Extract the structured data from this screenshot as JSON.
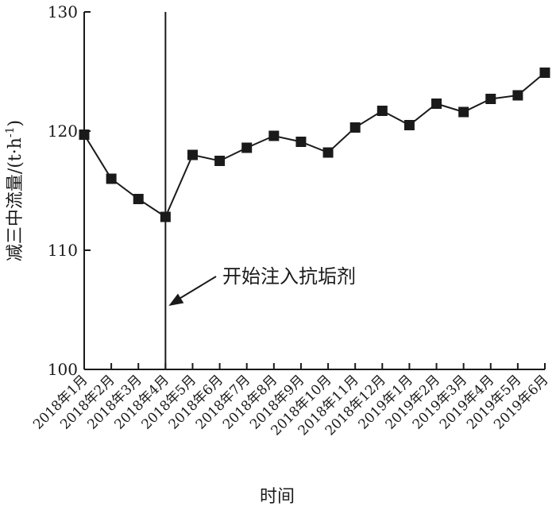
{
  "chart_data": {
    "type": "line",
    "xlabel": "时间",
    "ylabel": "减三中流量/(t·h",
    "ylabel_unit_exp": "-1",
    "ylabel_close": ")",
    "ylim": [
      100,
      130
    ],
    "yticks": [
      100,
      110,
      120,
      130
    ],
    "categories": [
      "2018年1月",
      "2018年2月",
      "2018年3月",
      "2018年4月",
      "2018年5月",
      "2018年6月",
      "2018年7月",
      "2018年8月",
      "2018年9月",
      "2018年10月",
      "2018年11月",
      "2018年12月",
      "2019年1月",
      "2019年2月",
      "2019年3月",
      "2019年4月",
      "2019年5月",
      "2019年6月"
    ],
    "series": [
      {
        "values": [
          119.7,
          116.0,
          114.3,
          112.8,
          118.0,
          117.5,
          118.6,
          119.6,
          119.1,
          118.2,
          120.3,
          121.7,
          120.5,
          122.3,
          121.6,
          122.7,
          123.0,
          124.9
        ]
      }
    ],
    "annotation": {
      "text": "开始注入抗垢剂",
      "at_category": "2018年4月"
    },
    "grid": false,
    "marker": "square",
    "line_color": "#1a1a1a"
  }
}
